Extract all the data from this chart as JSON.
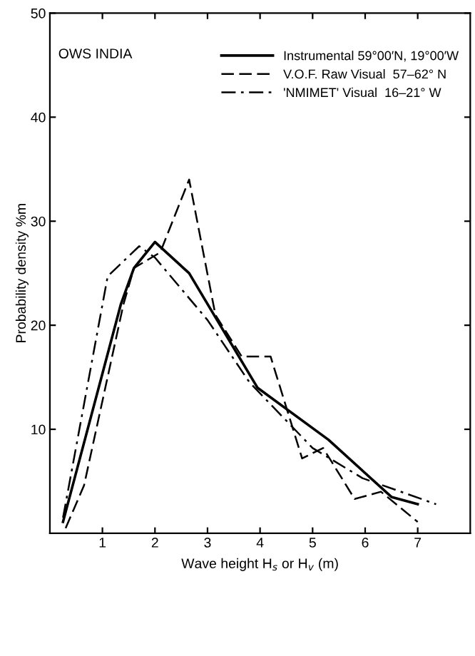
{
  "chart_data": {
    "type": "line",
    "xlabel": "Wave height H$_{s}$ or H$_{v}$ (m)",
    "ylabel": "Probability density %m",
    "annotations": [
      "OWS INDIA"
    ],
    "xlim": [
      0,
      8
    ],
    "ylim": [
      0,
      50
    ],
    "xticks": [
      1,
      2,
      3,
      4,
      5,
      6,
      7
    ],
    "yticks": [
      10,
      20,
      30,
      40,
      50
    ],
    "grid": false,
    "legend": "top right",
    "marker": "none",
    "series": [
      {
        "name": "Instrumental 59°00′N, 19°00′W",
        "color": "#000000",
        "line_style": "solid",
        "x": [
          0.25,
          1.35,
          1.6,
          2.0,
          2.65,
          3.95,
          5.3,
          6.5,
          7.0
        ],
        "values": [
          1.1,
          22,
          25.5,
          28,
          25,
          14,
          9,
          3.5,
          2.8
        ]
      },
      {
        "name": "V.O.F. Raw Visual  57–62° N",
        "color": "#000000",
        "line_style": "dashed",
        "x": [
          0.3,
          0.65,
          1.4,
          1.6,
          2.1,
          2.65,
          3.15,
          3.65,
          4.2,
          4.8,
          5.2,
          5.8,
          6.3,
          7.0
        ],
        "values": [
          0.5,
          4.6,
          22,
          25.5,
          27,
          34,
          21,
          17,
          17,
          7.2,
          8.2,
          3.3,
          4,
          1.1
        ]
      },
      {
        "name": "'NMIMET' Visual  16–21° W",
        "color": "#000000",
        "line_style": "dashdot",
        "x": [
          0.25,
          1.1,
          1.7,
          2.0,
          3.0,
          3.8,
          5.0,
          5.95,
          7.35
        ],
        "values": [
          1.5,
          24.7,
          27.6,
          26.5,
          20.5,
          14.5,
          8.2,
          5.3,
          2.8
        ]
      }
    ]
  }
}
